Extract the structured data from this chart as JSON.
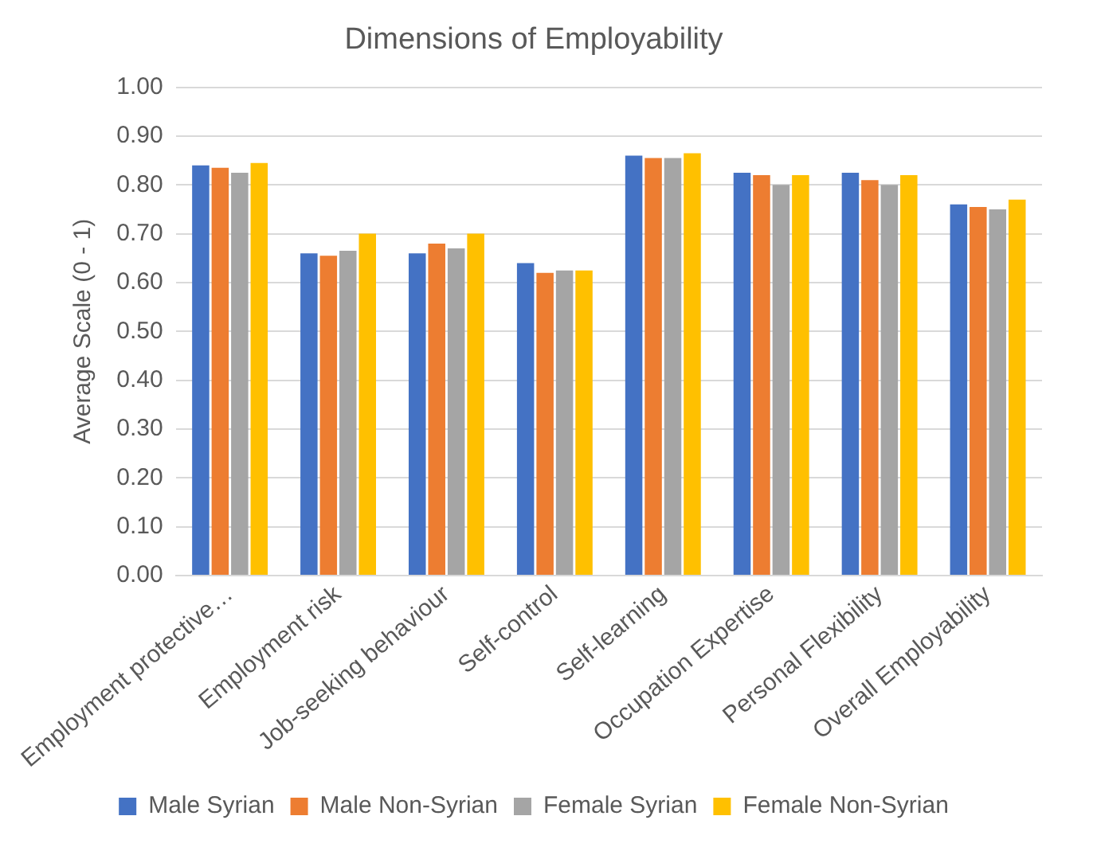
{
  "chart_data": {
    "type": "bar",
    "title": "Dimensions of Employability",
    "ylabel": "Average Scale (0 - 1)",
    "categories": [
      "Employment protective…",
      "Employment risk",
      "Job-seeking behaviour",
      "Self-control",
      "Self-learning",
      "Occupation Expertise",
      "Personal Flexibility",
      "Overall Employability"
    ],
    "series": [
      {
        "name": "Male Syrian",
        "color": "#4472c4",
        "values": [
          0.84,
          0.66,
          0.66,
          0.64,
          0.86,
          0.825,
          0.825,
          0.76
        ]
      },
      {
        "name": "Male Non-Syrian",
        "color": "#ed7d31",
        "values": [
          0.835,
          0.655,
          0.68,
          0.62,
          0.855,
          0.82,
          0.81,
          0.755
        ]
      },
      {
        "name": "Female Syrian",
        "color": "#a5a5a5",
        "values": [
          0.825,
          0.665,
          0.67,
          0.625,
          0.855,
          0.8,
          0.8,
          0.75
        ]
      },
      {
        "name": "Female Non-Syrian",
        "color": "#ffc000",
        "values": [
          0.845,
          0.7,
          0.7,
          0.625,
          0.865,
          0.82,
          0.82,
          0.77
        ]
      }
    ],
    "ylim": [
      0,
      1
    ],
    "yticks": [
      {
        "value": 0,
        "label": "0.00"
      },
      {
        "value": 0.1,
        "label": "0.10"
      },
      {
        "value": 0.2,
        "label": "0.20"
      },
      {
        "value": 0.3,
        "label": "0.30"
      },
      {
        "value": 0.4,
        "label": "0.40"
      },
      {
        "value": 0.5,
        "label": "0.50"
      },
      {
        "value": 0.6,
        "label": "0.60"
      },
      {
        "value": 0.7,
        "label": "0.70"
      },
      {
        "value": 0.8,
        "label": "0.80"
      },
      {
        "value": 0.9,
        "label": "0.90"
      },
      {
        "value": 1,
        "label": "1.00"
      }
    ],
    "grid": "y",
    "legend": "bottom"
  }
}
